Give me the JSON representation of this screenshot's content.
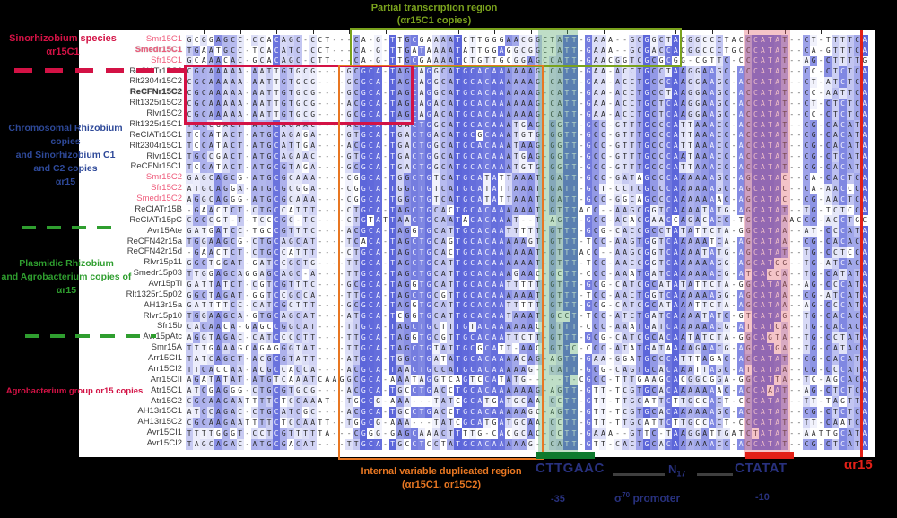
{
  "colors": {
    "pink_label": "#ef5b7b",
    "crimson": "#d31245",
    "navy": "#28317e",
    "orange": "#e87722",
    "olive_green": "#7aa21d",
    "green": "#2f9e2f",
    "dark_green_bar": "#0e7a2e",
    "red_bar": "#e32017",
    "band_green": "rgba(88,168,108,0.38)",
    "band_pink": "rgba(228,108,118,0.40)",
    "cell_blue": "80,90,215"
  },
  "notes": {
    "sinorhizobium": [
      "Sinorhizobium species",
      "αr15C1"
    ],
    "chromosomal": [
      "Chromosomal Rhizobium copies",
      "and Sinorhizobium C1",
      "and C2 copies",
      "αr15"
    ],
    "plasmidic": [
      "Plasmidic Rhizobium",
      "and Agrobacterium copies of",
      "αr15"
    ],
    "agrobacterium": [
      "Agrobacterium group αr15 copies"
    ],
    "top_green": [
      "Partial transcription region",
      "(αr15C1 copies)"
    ],
    "orange": [
      "Internal variable duplicated region",
      "(αr15C1, αr15C2)"
    ]
  },
  "promoter": {
    "minus35_seq": "CTTGAAC",
    "minus10_seq": "CTATAT",
    "minus35": "-35",
    "minus10": "-10",
    "spacer_n": "N",
    "spacer_sub": "17",
    "sigma_char": "σ",
    "sigma_sup": "70",
    "sigma_word": " promoter",
    "start_label": "αr15"
  },
  "alignment": {
    "rows": [
      {
        "label": "Smr15C1",
        "pink": true,
        "bold": false,
        "seq": "GCGGAGCC-CCACAGC-CCT---CA-G-TTGCGAAAATCTTGGGAACGGCTATT-GAAA--GCGGCTACGGCCCTACCCATAT--CT-TTTTCA"
      },
      {
        "label": "Smedr15C1",
        "pink": true,
        "bold": true,
        "seq": "TGAATGCC-TCACATC-CCT---CA-G-TTGATAAAATATTGGAGGCGGCTATT-GAAA--GCGACCACGGCCCTGCCCATAT--CA-GTTTCA"
      },
      {
        "label": "Sfr15C1",
        "pink": true,
        "bold": false,
        "seq": "GCAAACAC-GCACAGC-CTT---CA-G-TTGCGAAAATCTGTTGCGGAGCCATT-GAACGGTCGCGCGG-CGTTC-CCCATAT--AG-CTTTTG"
      },
      {
        "label": "ReCIATr15C2",
        "pink": false,
        "bold": false,
        "seq": "CGCAAAAA-AATTGTGCG----GCGCA-TAGCAGGCATGCACAAAAAAG-CATT-GAA-ACCTGCCTAAGGAAGC-ACCATAT--CC-CTCTCA"
      },
      {
        "label": "Rlt2304r15C2",
        "pink": false,
        "bold": false,
        "seq": "CGCAAAAA-AATTGTGCG----GCGCA-TAGCAGGCATGCACAAAAAAG-CATT-GAA-ACCTGCCCAAGGAAGC-ACCATAT--CT-ATCTCA"
      },
      {
        "label": "ReCFNr15C2",
        "pink": false,
        "bold": true,
        "seq": "CGCAAAAA-AATTGTGCG----GCGCA-TAGCAGGCATGCACAAAAAAG-CATT-GAA-ACCTGCCTAAGGAAGC-ACCATAT--CC-AATTCA"
      },
      {
        "label": "Rlt1325r15C2",
        "pink": false,
        "bold": false,
        "seq": "CGCAAAAA-AATTGTGCG----ACGCA-TAGCAGACATGCACAAAAAAG-CATT-GAA-ACCTGCTCAAGGAAGC-ACCATAT--CT-CTCTCA"
      },
      {
        "label": "Rlvr15C2",
        "pink": false,
        "bold": false,
        "seq": "CGCAAAAA-AATTGTGCG----GCGCA-TAGCAGACATGCACAAAAAAG-CATT-GAA-ACCTGCTCAAGGAAGC-ACCATAT--CC-CTCTCA"
      },
      {
        "label": "Rlt1325r15C1",
        "pink": false,
        "bold": false,
        "seq": "TGCCGACT-ATGCAGAAC----ACGCA-TGACTGGCATGCACAAATGAG-GGTT-GCC-GTTTGCCCATTAAACC-ACCATAT--CG-CACATA"
      },
      {
        "label": "ReCIATr15C1",
        "pink": false,
        "bold": false,
        "seq": "TCCATACT-ATGCAGAGA----GTGCA-TGACTGACATGCGCAAATGTG-GGTT-GCC-GTTTGCCCATTAAACC-ACCATAT--CG-CACATA"
      },
      {
        "label": "Rlt2304r15C1",
        "pink": false,
        "bold": false,
        "seq": "TCCATACT-ATGCATTGA----ACGCA-TGACTGGCATGCACAAATAAG-GGTT-GCC-GTTTGCCCATTAAACC-ACCATAT--CG-CACATA"
      },
      {
        "label": "Rlvr15C1",
        "pink": false,
        "bold": false,
        "seq": "TGCCGACT-ATGCAGAAC----GTGCA-TGACTGGCATGCACAAATGAG-GGTT-GCC-GTTTGCCCAATAAACC-ACCATAT--CG-CTCATA"
      },
      {
        "label": "ReCFNr15C1",
        "pink": false,
        "bold": false,
        "seq": "TCCATACT-ATGCGTAGA----GCGCA-TGACTGGCATGCACAAATGTG-GGTT-GCC-GTTTGCCCATTAAACC-ACCATAT--CG-CACATA"
      },
      {
        "label": "Smr15C2",
        "pink": true,
        "bold": false,
        "seq": "GAGCAGCG-ATGCGCAAA----CGGCA-TGGCTGTCATGCATATTAAAT-GATT-GCC-GATAGCCCAAAAAAGC-AGCATAC--CA-CACTCA"
      },
      {
        "label": "Sfr15C2",
        "pink": true,
        "bold": false,
        "seq": "ATGCAGGA-ATGCGCGGA----CGGCA-TGGCTGTCATGCATATTAAAT-GATT-GCT-CCTCGCCCAAAAAAGC-AGCATAC--CA-AACCCA"
      },
      {
        "label": "Smedr15C2",
        "pink": true,
        "bold": false,
        "seq": "AGGCAGGG-ATGCGCAAA----CGGCA-TGGCTGTCATGCATATTAAAT-GATT-GCC-GGCAGCCCAAAAAAAC-AGCATAC--CG-AACTCA"
      },
      {
        "label": "ReCIATr15B",
        "pink": false,
        "bold": false,
        "seq": "-GAACTCT-CTGCCATTT----CTGCA-TAGCTGCACTGCACAAAAAAT-GTTTACC--AAGCGGTCAAAATATG-AGCATAT--TG-TCTCCA"
      },
      {
        "label": "ReCIATr15pC",
        "pink": false,
        "bold": false,
        "seq": "CGCCGT-T-TCCCGC-TC----CTGTATTAACTGCAATACACAAAT--T-AGTT-GCC-ACACGAACCAGACACC-TGCATAAACCG-ACCTGC"
      },
      {
        "label": "Avr15Ate",
        "pink": false,
        "bold": false,
        "seq": "GATGATCC-TGCCGTTTC----ACGCA-TAGGTGCATTGCACAATTTTT-GTTT-GCG-CACCGCCTATATTCTA-GGCATAA--AT-CCCATA"
      },
      {
        "label": "ReCFN42r15a",
        "pink": false,
        "bold": false,
        "seq": "TGGAAGCG-CTGCAGCAT----TCACA-TAGCTGCAGTGCACAAAAAGT-GTTT-TCC-AAGTGGTCAAAAATCA-AGCATAA--CG-CACACA"
      },
      {
        "label": "ReCFN42r15d",
        "pink": false,
        "bold": false,
        "seq": "-GAACTCT-CTGCCATTT----CTGCA-TAGCTGCACTGCACAAAAAAT-GTTTACC--AAGCGGTCAAAATATG-AGCATAT--TG-CCTCCA"
      },
      {
        "label": "Rlvr15p11",
        "pink": false,
        "bold": false,
        "seq": "GGCTGGAT-GATCCGCTG----TTGCA-TAGCTGCATTGCACAAAAAAT-GTTT-TCC-AACCGGTCAAAAAAGG-AGCATGG--TG-ATCACA"
      },
      {
        "label": "Smedr15p03",
        "pink": false,
        "bold": false,
        "seq": "TTGGAGCAGGAGCAGC-A----TTGCA-TAGCTGCATTGCACAAAGAAC-GCTT-CCC-AAATGATCAAAAAACG-ATCACCA--TG-CATATA"
      },
      {
        "label": "Avr15pTi",
        "pink": false,
        "bold": false,
        "seq": "GATTATCT-CGTCGTTTC----GCGCA-TAGGTGCATTGCACAATTTTT-GTTT-GCG-CATCGCATATATTCTA-GGCATAA--AG-CCCATA"
      },
      {
        "label": "Rlt1325r15p02",
        "pink": false,
        "bold": false,
        "seq": "GGCTAGAT-GGTCCGCCA----TTGCA-TAGCTGCGTTGCACAAAAAAT-GTTT-TCC-AACTGGTCAAAAAAGG-AGCATAA--CG-ATCATA"
      },
      {
        "label": "AH13r15a",
        "pink": false,
        "bold": false,
        "seq": "GATTTTCC-CATCGCTTT----GCGCA-TAGGTGCATTGCACAATTTTT-GTTT-GCG-CATCGCATAAATTCTA-AGCATAA--AG-CCCATA"
      },
      {
        "label": "Rlvr15p10",
        "pink": false,
        "bold": false,
        "seq": "TGGAAGCA-GTGCAGCAT----ATGCA-TCGGTGCATTGCACAATAAAT-GCCT-TCC-ATCTGATCAAAATATC-GTCATAG--TG-CACACA"
      },
      {
        "label": "Sfr15b",
        "pink": false,
        "bold": false,
        "seq": "CACAACA-GAGCCGGCAT----TTGCA-TAGCTGCTTTGTACAAAAAAC-GTTT-CCC-AAATGATCAAAAAACG-ATCATCA--TG-CACACA"
      },
      {
        "label": "Avr15pAtc",
        "pink": false,
        "bold": false,
        "seq": "AGGTAGAC-CATCCCCTT----TTGCA-TAGGTGCGTTGCACAATTCTT-GTTT-GCG-CATCGCACAATATCTA-GGCAGTA--TG-CCTATA"
      },
      {
        "label": "Smr15A",
        "pink": false,
        "bold": false,
        "seq": "TTTGAAAGCAGAGGGTAT----TTGCA-TAGCTGTATTGCGCATT-AAC-GTTC-CCC-ATATGATAAAAGAACG-AGCATGA--TG-CATACA"
      },
      {
        "label": "Arr15CI1",
        "pink": false,
        "bold": false,
        "seq": "TATCAGCT-ACGCGTATT----ATGCA-TGGCTGATATGCACAAAACAG-AGTT-GAA-GGATGCCCATTTAGAC-ACCATAT--CG-CACATA"
      },
      {
        "label": "Arr15CI2",
        "pink": false,
        "bold": false,
        "seq": "TTCACCAA-ACGCCACCA----ACGCA-TAACTGCCATGCACAAAAAG--CATT-GCG-CAGTGCACAAATTAGC-ATCATAA--CG-CCCATA"
      },
      {
        "label": "Arr15CII",
        "pink": false,
        "bold": false,
        "seq": "AGATATAT-ATGTCAAATCAAGGCGCA-AAATAGGTCAGTCCATATG-----T-CGCC-TTTGAAGCACGGCGGA-GGCATTA--TC-AGCACA"
      },
      {
        "label": "Atr15C1",
        "pink": false,
        "bold": false,
        "seq": "ATCGAGGG-CTGCGTGCG----ACGCA-TGCCTGACCTGCACAAAAAAG-AGTT-GTT-TCGTGCACAAAAAAAC-ACCAAAT--AG-CTCTCA"
      },
      {
        "label": "Atr15C2",
        "pink": false,
        "bold": false,
        "seq": "CGCAAGAATTTTCTCCAAAT--TGGCG-AAA---TATCGCATGATGCAA-CCTT-GTT-TTGCATTCTTGCCACT-CCCATAT--TT-TAGTTA"
      },
      {
        "label": "AH13r15C1",
        "pink": false,
        "bold": false,
        "seq": "ATCCAGAC-CTGCATCGC----ACGCA-TGCCTGACCTGCACAAAAAGC-AGTT-GTT-TCGTGCACAAAAAAGC-ACCATAT--CG-CTCTCA"
      },
      {
        "label": "AH13r15C2",
        "pink": false,
        "bold": false,
        "seq": "CGCAAGAATTTTCTCCAATT--TGGCG-AAA---TATCGCATGATGCAA-CCTT-GTT-TTGCATTCTTGCCACT-CCCATAT--TT-CAATCA"
      },
      {
        "label": "Avr15CI1",
        "pink": false,
        "bold": false,
        "seq": "TTTTGGGT-CCTCGTTTTTA---CGGG-GAGCAAACTTTTG-CACGCAC-CCTT-GAAA--GTTC-TAAGGATTGATCTATAT--AATTGCATA"
      },
      {
        "label": "Avr15CI2",
        "pink": false,
        "bold": false,
        "seq": "TAGCAGAC-ATGCGACAT----TTGCA-TGCCTCCTATGCACAAAAAG--CATT-GTT-CACTGCACAAAAAACC-ACCATAT--CG-CTCATA"
      }
    ]
  }
}
